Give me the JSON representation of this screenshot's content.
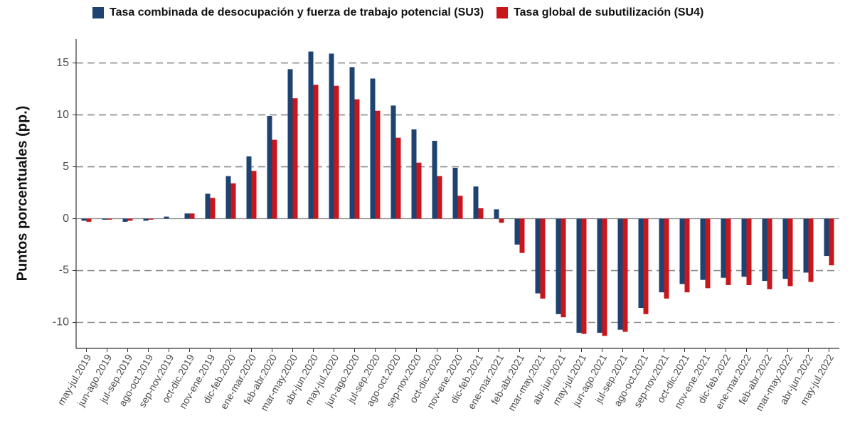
{
  "chart_data": {
    "type": "bar",
    "y_label": "Puntos porcentuales (pp.)",
    "categories": [
      "may-jul.2019",
      "jun-ago.2019",
      "jul-sep.2019",
      "ago-oct.2019",
      "sep-nov.2019",
      "oct-dic.2019",
      "nov-ene.2019",
      "dic-feb.2020",
      "ene-mar.2020",
      "feb-abr.2020",
      "mar-may.2020",
      "abr-jun.2020",
      "may-jul.2020",
      "jun-ago.2020",
      "jul-sep.2020",
      "ago-oct.2020",
      "sep-nov.2020",
      "oct-dic.2020",
      "nov-ene.2020",
      "dic-feb.2021",
      "ene-mar.2021",
      "feb-abr.2021",
      "mar-may.2021",
      "abr-jun.2021",
      "may-jul.2021",
      "jun-ago.2021",
      "jul-sep.2021",
      "ago-oct.2021",
      "sep-nov.2021",
      "oct-dic.2021",
      "nov-ene.2021",
      "dic-feb.2022",
      "ene-mar.2022",
      "feb-abr.2022",
      "mar-may.2022",
      "abr-jun.2022",
      "may-jul.2022"
    ],
    "series": [
      {
        "name": "Tasa combinada de desocupación y fuerza de trabajo potencial (SU3)",
        "color": "#1f4370",
        "values": [
          -0.2,
          -0.1,
          -0.3,
          -0.2,
          0.2,
          0.5,
          2.4,
          4.1,
          6.0,
          9.9,
          14.4,
          16.1,
          15.9,
          14.6,
          13.5,
          10.9,
          8.6,
          7.5,
          4.9,
          3.1,
          0.9,
          -2.5,
          -7.2,
          -9.2,
          -11.0,
          -11.0,
          -10.7,
          -8.6,
          -7.1,
          -6.3,
          -5.9,
          -5.7,
          -5.6,
          -6.0,
          -5.8,
          -5.2,
          -3.6
        ]
      },
      {
        "name": "Tasa global de subutilización (SU4)",
        "color": "#c8161d",
        "values": [
          -0.3,
          -0.1,
          -0.2,
          -0.1,
          0.0,
          0.5,
          2.0,
          3.4,
          4.6,
          7.6,
          11.6,
          12.9,
          12.8,
          11.5,
          10.4,
          7.8,
          5.4,
          4.1,
          2.2,
          1.0,
          -0.4,
          -3.3,
          -7.7,
          -9.5,
          -11.1,
          -11.3,
          -10.9,
          -9.2,
          -7.7,
          -7.1,
          -6.7,
          -6.4,
          -6.4,
          -6.8,
          -6.5,
          -6.1,
          -4.5
        ]
      }
    ],
    "ylim": [
      -12.5,
      17.3
    ],
    "yticks": [
      -10,
      -5,
      0,
      5,
      10,
      15
    ],
    "grid": true,
    "legend": "top"
  }
}
